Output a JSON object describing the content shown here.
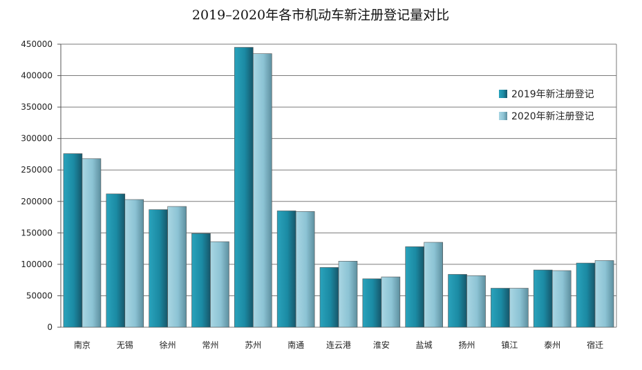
{
  "chart_data": {
    "type": "bar",
    "title": "2019–2020年各市机动车新注册登记量对比",
    "xlabel": "",
    "ylabel": "",
    "ylim": [
      0,
      450000
    ],
    "yticks": [
      0,
      50000,
      100000,
      150000,
      200000,
      250000,
      300000,
      350000,
      400000,
      450000
    ],
    "grid": true,
    "legend_position": "right",
    "categories": [
      "南京",
      "无锡",
      "徐州",
      "常州",
      "苏州",
      "南通",
      "连云港",
      "淮安",
      "盐城",
      "扬州",
      "镇江",
      "泰州",
      "宿迁"
    ],
    "series": [
      {
        "name": "2019年新注册登记",
        "color": "#1f8da6",
        "values": [
          276000,
          212000,
          187000,
          149000,
          445000,
          185000,
          95000,
          77000,
          128000,
          84000,
          62000,
          91000,
          102000
        ]
      },
      {
        "name": "2020年新注册登记",
        "color": "#8fc7d9",
        "values": [
          268000,
          203000,
          192000,
          136000,
          435000,
          184000,
          105000,
          80000,
          135000,
          82000,
          62000,
          90000,
          106000
        ]
      }
    ]
  }
}
